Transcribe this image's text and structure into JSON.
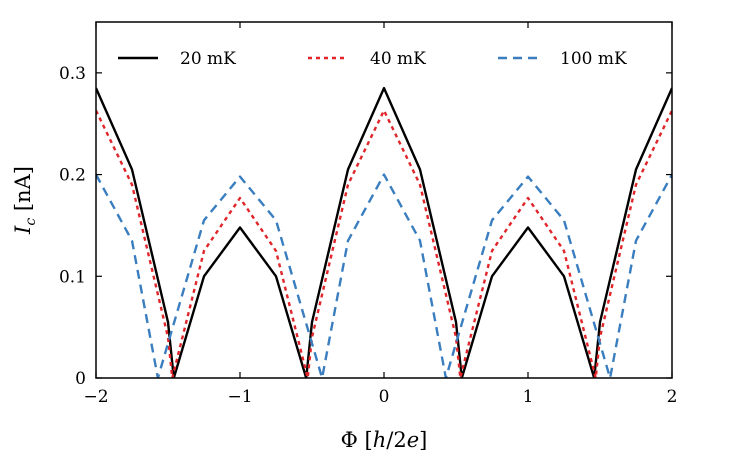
{
  "chart_data": {
    "type": "line",
    "title": "",
    "xlabel": "Φ [h/2e]",
    "ylabel": "I_c [nA]",
    "xlim": [
      -2,
      2
    ],
    "ylim": [
      0,
      0.35
    ],
    "xticks": [
      -2,
      -1,
      0,
      1,
      2
    ],
    "xtick_labels": [
      "−2",
      "−1",
      "0",
      "1",
      "2"
    ],
    "yticks": [
      0,
      0.1,
      0.2,
      0.3
    ],
    "ytick_labels": [
      "0",
      "0.1",
      "0.2",
      "0.3"
    ],
    "grid": false,
    "legend_position": "top",
    "series": [
      {
        "name": "20 mK",
        "color": "#000000",
        "style": "solid",
        "points": [
          [
            -2.0,
            0.285
          ],
          [
            -1.75,
            0.205
          ],
          [
            -1.5,
            0.055
          ],
          [
            -1.46,
            0.0
          ],
          [
            -1.25,
            0.1
          ],
          [
            -1.0,
            0.148
          ],
          [
            -0.75,
            0.1
          ],
          [
            -0.54,
            0.0
          ],
          [
            -0.5,
            0.055
          ],
          [
            -0.25,
            0.205
          ],
          [
            0.0,
            0.285
          ],
          [
            0.25,
            0.205
          ],
          [
            0.5,
            0.055
          ],
          [
            0.54,
            0.0
          ],
          [
            0.75,
            0.1
          ],
          [
            1.0,
            0.148
          ],
          [
            1.25,
            0.1
          ],
          [
            1.46,
            0.0
          ],
          [
            1.5,
            0.055
          ],
          [
            1.75,
            0.205
          ],
          [
            2.0,
            0.285
          ]
        ]
      },
      {
        "name": "40 mK",
        "color": "#e0262b",
        "style": "dotted",
        "points": [
          [
            -2.0,
            0.263
          ],
          [
            -1.75,
            0.19
          ],
          [
            -1.5,
            0.04
          ],
          [
            -1.47,
            0.0
          ],
          [
            -1.25,
            0.125
          ],
          [
            -1.0,
            0.177
          ],
          [
            -0.75,
            0.125
          ],
          [
            -0.53,
            0.0
          ],
          [
            -0.5,
            0.04
          ],
          [
            -0.25,
            0.19
          ],
          [
            0.0,
            0.263
          ],
          [
            0.25,
            0.19
          ],
          [
            0.5,
            0.04
          ],
          [
            0.53,
            0.0
          ],
          [
            0.75,
            0.125
          ],
          [
            1.0,
            0.177
          ],
          [
            1.25,
            0.125
          ],
          [
            1.47,
            0.0
          ],
          [
            1.5,
            0.04
          ],
          [
            1.75,
            0.19
          ],
          [
            2.0,
            0.263
          ]
        ]
      },
      {
        "name": "100 mK",
        "color": "#3a7ebf",
        "style": "dashed",
        "points": [
          [
            -2.0,
            0.2
          ],
          [
            -1.75,
            0.135
          ],
          [
            -1.57,
            0.0
          ],
          [
            -1.25,
            0.155
          ],
          [
            -1.0,
            0.198
          ],
          [
            -0.75,
            0.155
          ],
          [
            -0.43,
            0.0
          ],
          [
            -0.25,
            0.135
          ],
          [
            0.0,
            0.2
          ],
          [
            0.25,
            0.135
          ],
          [
            0.43,
            0.0
          ],
          [
            0.75,
            0.155
          ],
          [
            1.0,
            0.198
          ],
          [
            1.25,
            0.155
          ],
          [
            1.57,
            0.0
          ],
          [
            1.75,
            0.135
          ],
          [
            2.0,
            0.2
          ]
        ]
      }
    ]
  }
}
